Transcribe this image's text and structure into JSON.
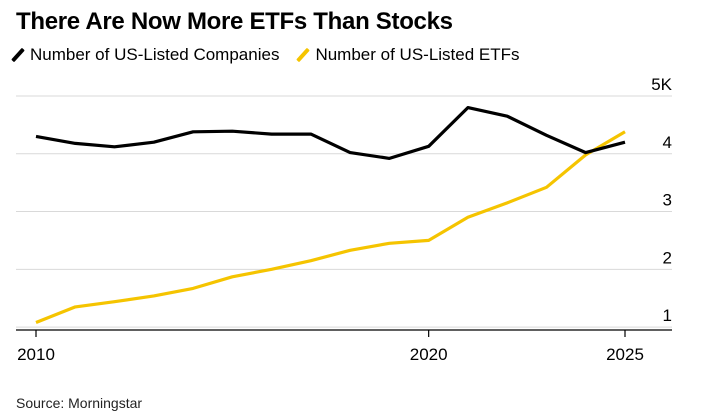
{
  "title": "There Are Now More ETFs Than Stocks",
  "source": "Source: Morningstar",
  "colors": {
    "companies": "#000000",
    "etfs": "#f5c400",
    "grid": "#d9d9d9",
    "axis": "#000000"
  },
  "chart_data": {
    "type": "line",
    "title": "There Are Now More ETFs Than Stocks",
    "x": [
      2010,
      2011,
      2012,
      2013,
      2014,
      2015,
      2016,
      2017,
      2018,
      2019,
      2020,
      2021,
      2022,
      2023,
      2024,
      2025
    ],
    "series": [
      {
        "name": "Number of US-Listed Companies",
        "color": "#000000",
        "values": [
          4.3,
          4.18,
          4.12,
          4.2,
          4.38,
          4.39,
          4.34,
          4.34,
          4.02,
          3.92,
          4.13,
          4.8,
          4.65,
          4.32,
          4.02,
          4.2
        ]
      },
      {
        "name": "Number of US-Listed ETFs",
        "color": "#f5c400",
        "values": [
          1.08,
          1.35,
          1.44,
          1.54,
          1.67,
          1.87,
          2.0,
          2.15,
          2.33,
          2.45,
          2.5,
          2.9,
          3.15,
          3.42,
          3.98,
          4.38
        ]
      }
    ],
    "y_ticks": [
      {
        "value": 1,
        "label": "1"
      },
      {
        "value": 2,
        "label": "2"
      },
      {
        "value": 3,
        "label": "3"
      },
      {
        "value": 4,
        "label": "4"
      },
      {
        "value": 5,
        "label": "5K"
      }
    ],
    "x_ticks": [
      {
        "value": 2010,
        "label": "2010"
      },
      {
        "value": 2020,
        "label": "2020"
      },
      {
        "value": 2025,
        "label": "2025"
      }
    ],
    "xlim": [
      2010,
      2025
    ],
    "ylim": [
      0.95,
      5.0
    ],
    "grid": true,
    "legend_position": "top-left"
  }
}
